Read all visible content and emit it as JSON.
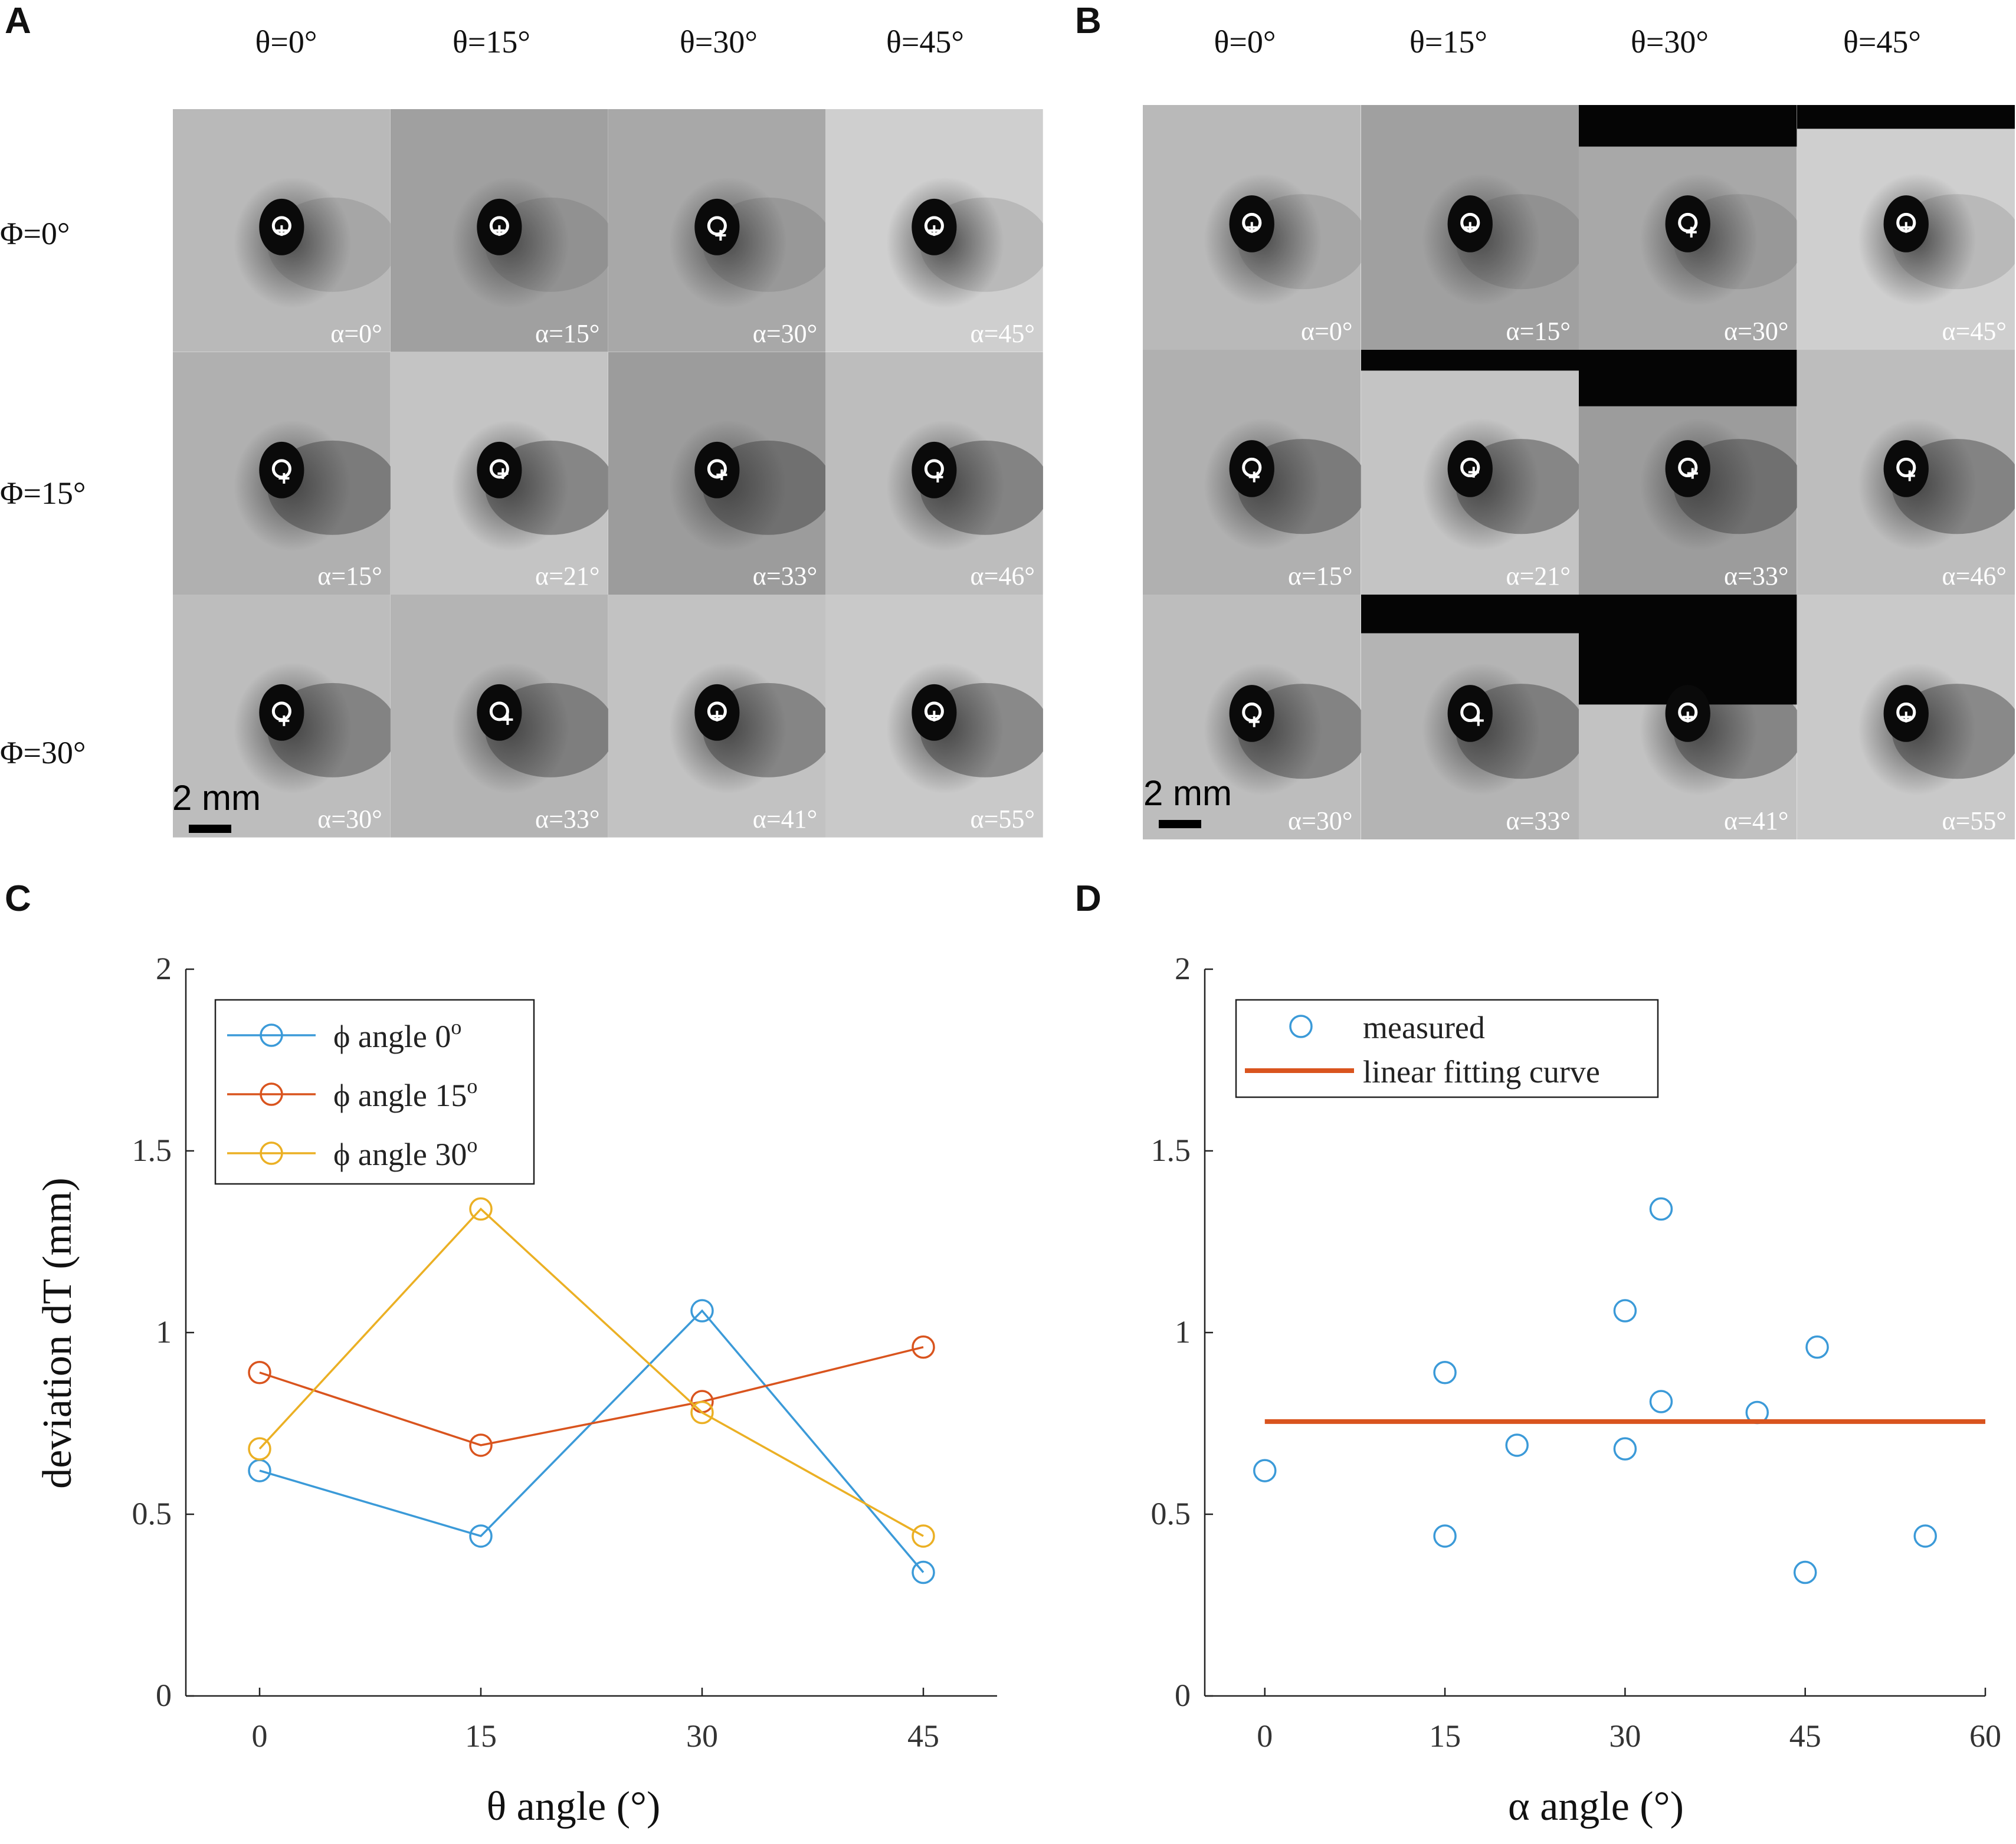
{
  "panels": {
    "A": {
      "letter": "A",
      "scale_label": "2 mm"
    },
    "B": {
      "letter": "B",
      "scale_label": "2 mm"
    },
    "C": {
      "letter": "C"
    },
    "D": {
      "letter": "D"
    }
  },
  "theta_headers": [
    "θ=0°",
    "θ=15°",
    "θ=30°",
    "θ=45°"
  ],
  "phi_headers": [
    "Φ=0°",
    "Φ=15°",
    "Φ=30°"
  ],
  "alpha_grid": [
    [
      "α=0°",
      "α=15°",
      "α=30°",
      "α=45°"
    ],
    [
      "α=15°",
      "α=21°",
      "α=33°",
      "α=46°"
    ],
    [
      "α=30°",
      "α=33°",
      "α=41°",
      "α=55°"
    ]
  ],
  "colors": {
    "blue": "#3b9ad8",
    "orange": "#d9541e",
    "yellow": "#ebb024",
    "fit": "#d9541e"
  },
  "chart_data": [
    {
      "panel": "C",
      "type": "line",
      "title": "",
      "xlabel": "θ angle (°)",
      "ylabel": "deviation dT (mm)",
      "x": [
        0,
        15,
        30,
        45
      ],
      "xticks": [
        "0",
        "15",
        "30",
        "45"
      ],
      "yticks": [
        "0",
        "0.5",
        "1",
        "1.5",
        "2"
      ],
      "xlim": [
        -5,
        50
      ],
      "ylim": [
        0,
        2
      ],
      "legend_position": "top-left",
      "series": [
        {
          "name": "ϕ angle 0°",
          "legend_main": "ϕ angle 0",
          "legend_sup": "o",
          "color": "#3b9ad8",
          "values": [
            0.62,
            0.44,
            1.06,
            0.34
          ]
        },
        {
          "name": "ϕ angle 15°",
          "legend_main": "ϕ angle 15",
          "legend_sup": "o",
          "color": "#d9541e",
          "values": [
            0.89,
            0.69,
            0.81,
            0.96
          ]
        },
        {
          "name": "ϕ angle 30°",
          "legend_main": "ϕ angle 30",
          "legend_sup": "o",
          "color": "#ebb024",
          "values": [
            0.68,
            1.34,
            0.78,
            0.44
          ]
        }
      ]
    },
    {
      "panel": "D",
      "type": "scatter",
      "title": "",
      "xlabel": "α angle (°)",
      "ylabel": "",
      "xticks": [
        "0",
        "15",
        "30",
        "45",
        "60"
      ],
      "yticks": [
        "0",
        "0.5",
        "1",
        "1.5",
        "2"
      ],
      "xlim": [
        -5,
        60
      ],
      "ylim": [
        0,
        2
      ],
      "legend_position": "top-left",
      "series": [
        {
          "name": "measured",
          "type": "scatter",
          "color": "#3b9ad8",
          "x": [
            0,
            15,
            15,
            21,
            30,
            30,
            33,
            33,
            41,
            45,
            46,
            55
          ],
          "y": [
            0.62,
            0.44,
            0.89,
            0.69,
            1.06,
            0.68,
            0.81,
            1.34,
            0.78,
            0.34,
            0.96,
            0.44
          ]
        },
        {
          "name": "linear fitting curve",
          "type": "line",
          "color": "#d9541e",
          "x": [
            0,
            60
          ],
          "y": [
            0.755,
            0.755
          ]
        }
      ]
    }
  ]
}
